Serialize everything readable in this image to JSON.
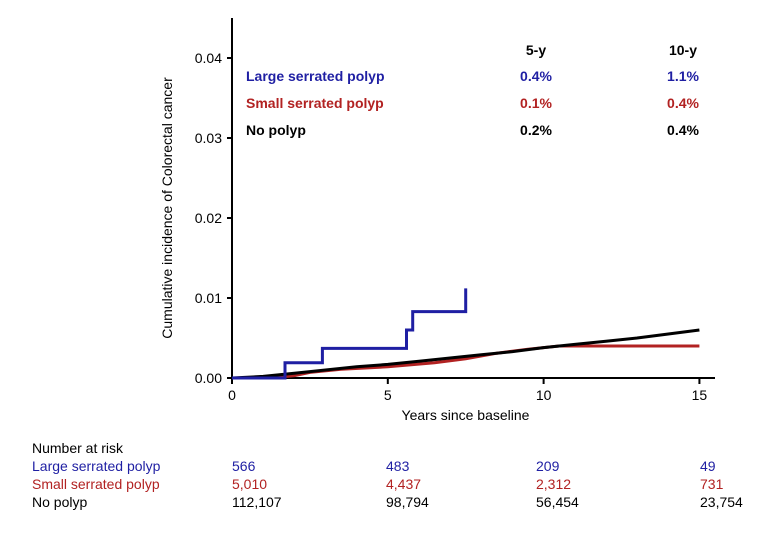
{
  "chart_data": {
    "type": "line",
    "xlabel": "Years since baseline",
    "ylabel": "Cumulative incidence of Colorectal cancer",
    "xlim": [
      0,
      15.5
    ],
    "ylim": [
      0,
      0.045
    ],
    "x_ticks": [
      "0",
      "5",
      "10",
      "15"
    ],
    "y_ticks": [
      "0.00",
      "0.01",
      "0.02",
      "0.03",
      "0.04"
    ],
    "x_tick_values": [
      0,
      5,
      10,
      15
    ],
    "y_tick_values": [
      0,
      0.01,
      0.02,
      0.03,
      0.04
    ],
    "grid": false,
    "series": [
      {
        "name": "Large serrated polyp",
        "color": "#1f1fa3",
        "step": true,
        "x": [
          0,
          1.7,
          1.7,
          2.9,
          2.9,
          5.6,
          5.6,
          5.8,
          5.8,
          7.5,
          7.5
        ],
        "y": [
          0,
          0,
          0.0019,
          0.0019,
          0.0037,
          0.0037,
          0.006,
          0.006,
          0.0083,
          0.0083,
          0.0112
        ]
      },
      {
        "name": "Small serrated polyp",
        "color": "#b22222",
        "step": false,
        "x": [
          0,
          1.2,
          2.0,
          2.5,
          3.5,
          5.0,
          6.5,
          7.5,
          8.5,
          9.5,
          10.5,
          12.0,
          13.5,
          15.0
        ],
        "y": [
          0,
          0,
          0.0003,
          0.0007,
          0.0011,
          0.0014,
          0.0019,
          0.0024,
          0.0031,
          0.0036,
          0.004,
          0.004,
          0.004,
          0.004
        ]
      },
      {
        "name": "No polyp",
        "color": "#000000",
        "step": false,
        "x": [
          0,
          1.0,
          2.0,
          3.0,
          4.0,
          5.0,
          6.0,
          7.0,
          8.0,
          9.0,
          10.0,
          11.0,
          12.0,
          13.0,
          14.0,
          15.0
        ],
        "y": [
          0,
          0.0002,
          0.0006,
          0.001,
          0.0014,
          0.0017,
          0.0021,
          0.0025,
          0.0029,
          0.0033,
          0.0038,
          0.0042,
          0.0046,
          0.005,
          0.0055,
          0.006
        ]
      }
    ],
    "legend_table": {
      "headers": [
        "5-y",
        "10-y"
      ],
      "rows": [
        {
          "name": "Large serrated polyp",
          "color": "#1f1fa3",
          "five": "0.4%",
          "ten": "1.1%"
        },
        {
          "name": "Small serrated polyp",
          "color": "#b22222",
          "five": "0.1%",
          "ten": "0.4%"
        },
        {
          "name": "No polyp",
          "color": "#000000",
          "five": "0.2%",
          "ten": "0.4%"
        }
      ]
    },
    "risk_table": {
      "title": "Number at risk",
      "times": [
        0,
        5,
        10,
        15
      ],
      "rows": [
        {
          "name": "Large serrated polyp",
          "color": "#1f1fa3",
          "values": [
            "566",
            "483",
            "209",
            "49"
          ]
        },
        {
          "name": "Small serrated polyp",
          "color": "#b22222",
          "values": [
            "5,010",
            "4,437",
            "2,312",
            "731"
          ]
        },
        {
          "name": "No polyp",
          "color": "#000000",
          "values": [
            "112,107",
            "98,794",
            "56,454",
            "23,754"
          ]
        }
      ]
    }
  }
}
